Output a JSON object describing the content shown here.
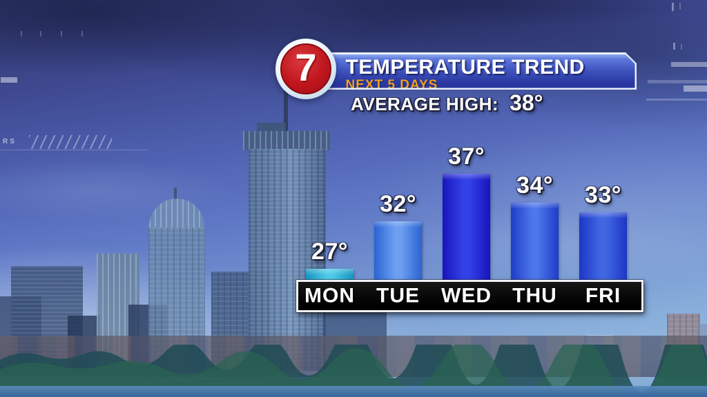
{
  "header": {
    "logo": {
      "channel": "7"
    },
    "banner": {
      "title": "TEMPERATURE TREND",
      "subtitle": "NEXT 5 DAYS"
    },
    "average": {
      "label": "AVERAGE HIGH:",
      "value": "38°"
    }
  },
  "hud": {
    "left_tag": "RS"
  },
  "chart_data": {
    "type": "bar",
    "title": "TEMPERATURE TREND",
    "subtitle": "NEXT 5 DAYS",
    "categories": [
      "MON",
      "TUE",
      "WED",
      "THU",
      "FRI"
    ],
    "values": [
      27,
      32,
      37,
      34,
      33
    ],
    "value_labels": [
      "27°",
      "32°",
      "37°",
      "34°",
      "33°"
    ],
    "average_high": 38,
    "ylim": [
      25.8,
      38
    ],
    "xlabel": "",
    "ylabel": "",
    "legend": "none",
    "grid": "off",
    "bar_colors": [
      {
        "edge": "#1796c2",
        "center": "#4ecbe8"
      },
      {
        "edge": "#2a63d2",
        "center": "#6d9ff2"
      },
      {
        "edge": "#1814bc",
        "center": "#3441e8"
      },
      {
        "edge": "#1e3cc8",
        "center": "#4d76ea"
      },
      {
        "edge": "#1c36c6",
        "center": "#4166e2"
      }
    ]
  },
  "colors": {
    "banner_blue": "#3a50b8",
    "banner_border": "#e9eff9",
    "subtitle_gold": "#efa01e",
    "strip_bg": "#0a0a0a",
    "strip_border": "#eef2f7",
    "logo_red": "#c0161d",
    "text_white": "#ffffff"
  }
}
